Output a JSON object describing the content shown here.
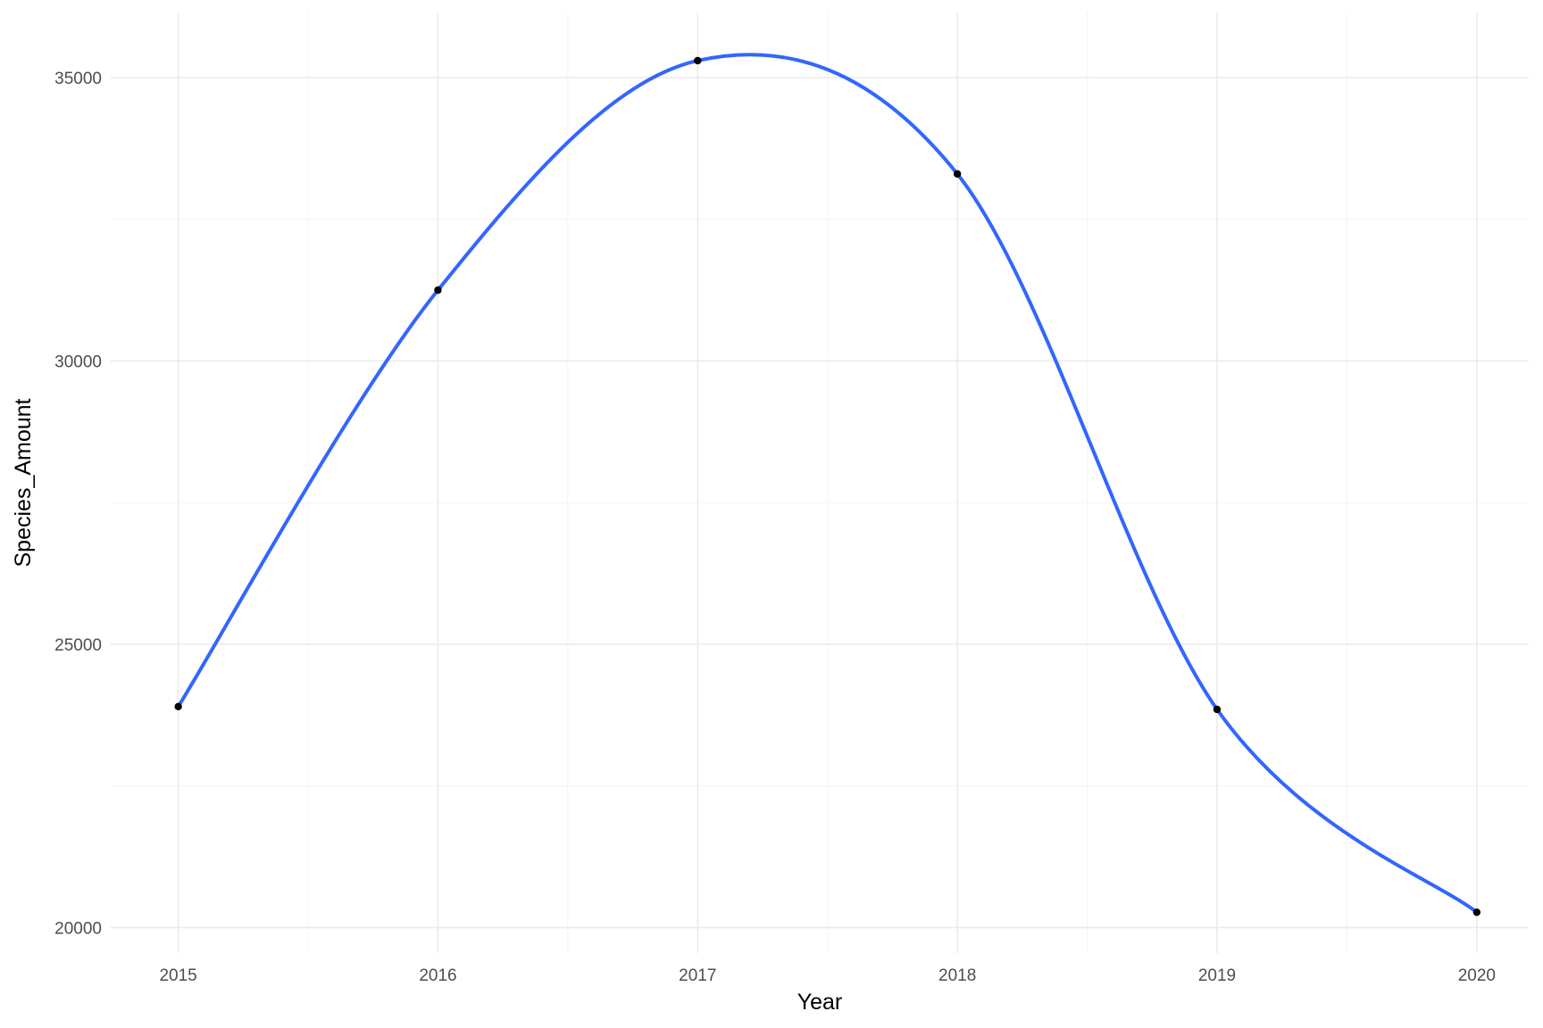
{
  "chart_data": {
    "type": "line",
    "title": "",
    "xlabel": "Year",
    "ylabel": "Species_Amount",
    "x": [
      2015,
      2016,
      2017,
      2018,
      2019,
      2020
    ],
    "series": [
      {
        "values": [
          23900,
          31250,
          35300,
          33300,
          23850,
          20270
        ]
      }
    ],
    "smooth": true,
    "xlim": [
      2014.74,
      2020.2
    ],
    "ylim": [
      19550,
      36150
    ],
    "x_ticks": [
      2015,
      2016,
      2017,
      2018,
      2019,
      2020
    ],
    "x_tick_labels": [
      "2015",
      "2016",
      "2017",
      "2018",
      "2019",
      "2020"
    ],
    "y_ticks": [
      20000,
      25000,
      30000,
      35000
    ],
    "y_tick_labels": [
      "20000",
      "25000",
      "30000",
      "35000"
    ],
    "grid": true,
    "legend": "none",
    "colors": {
      "line": "#3366FF",
      "points": "#000000",
      "grid": "#EBEBEB",
      "background": "#FFFFFF"
    }
  }
}
